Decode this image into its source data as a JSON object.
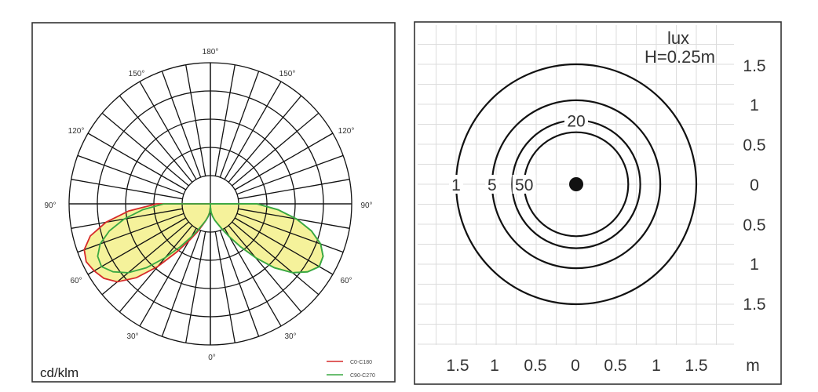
{
  "chart_data": [
    {
      "type": "polar",
      "unit_label": "cd/klm",
      "angle_labels": {
        "left": [
          "180°",
          "150°",
          "120°",
          "90°",
          "60°",
          "30°",
          "0°"
        ],
        "right": [
          "150°",
          "120°",
          "90°",
          "60°",
          "30°"
        ]
      },
      "radial_max": 100,
      "grid": true,
      "legend_position": "bottom-right",
      "fill_color": "#f3f08a",
      "series": [
        {
          "name": "C0-C180",
          "color": "#d62a2a",
          "angles": [
            0,
            5,
            10,
            15,
            20,
            25,
            30,
            35,
            40,
            45,
            50,
            55,
            60,
            65,
            70,
            75,
            80,
            85,
            90
          ],
          "values": [
            2,
            6,
            9,
            12,
            16,
            22,
            30,
            42,
            58,
            74,
            86,
            92,
            95,
            97,
            95,
            88,
            75,
            58,
            38
          ]
        },
        {
          "name": "C90-C270",
          "color": "#3aa842",
          "angles": [
            0,
            5,
            10,
            15,
            20,
            25,
            30,
            35,
            40,
            45,
            50,
            55,
            60,
            65,
            70,
            75,
            80,
            85,
            90
          ],
          "values": [
            2,
            6,
            9,
            12,
            15,
            20,
            27,
            37,
            50,
            64,
            76,
            84,
            89,
            88,
            83,
            74,
            62,
            48,
            33
          ]
        }
      ]
    },
    {
      "type": "isolux",
      "title": "lux",
      "subtitle": "H=0.25m",
      "x_unit": "m",
      "x_ticks": [
        "1.5",
        "1",
        "0.5",
        "0",
        "0.5",
        "1",
        "1.5"
      ],
      "y_ticks": [
        "1.5",
        "1",
        "0.5",
        "0",
        "0.5",
        "1",
        "1.5"
      ],
      "x_range": [
        -1.5,
        1.5
      ],
      "y_range": [
        -1.5,
        1.5
      ],
      "grid": true,
      "contours": [
        {
          "label": "1",
          "radius": 1.5
        },
        {
          "label": "5",
          "radius": 1.05
        },
        {
          "label": "20",
          "radius": 0.8
        },
        {
          "label": "50",
          "radius": 0.65
        }
      ],
      "center": [
        0,
        0
      ]
    }
  ]
}
